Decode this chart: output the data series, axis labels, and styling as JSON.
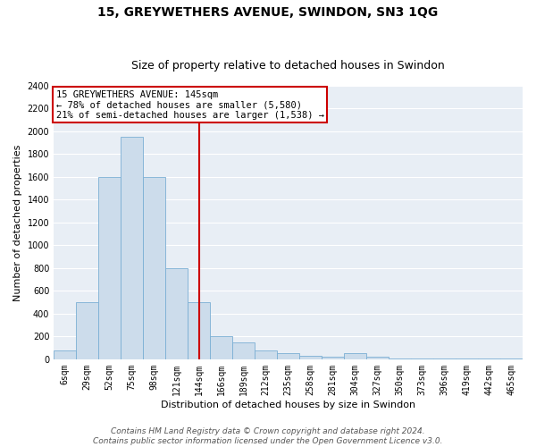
{
  "title": "15, GREYWETHERS AVENUE, SWINDON, SN3 1QG",
  "subtitle": "Size of property relative to detached houses in Swindon",
  "xlabel": "Distribution of detached houses by size in Swindon",
  "ylabel": "Number of detached properties",
  "bin_labels": [
    "6sqm",
    "29sqm",
    "52sqm",
    "75sqm",
    "98sqm",
    "121sqm",
    "144sqm",
    "166sqm",
    "189sqm",
    "212sqm",
    "235sqm",
    "258sqm",
    "281sqm",
    "304sqm",
    "327sqm",
    "350sqm",
    "373sqm",
    "396sqm",
    "419sqm",
    "442sqm",
    "465sqm"
  ],
  "bar_heights": [
    75,
    500,
    1600,
    1950,
    1600,
    800,
    500,
    200,
    150,
    75,
    50,
    30,
    25,
    50,
    20,
    10,
    5,
    5,
    5,
    5,
    5
  ],
  "bar_color": "#ccdceb",
  "bar_edge_color": "#7bafd4",
  "vline_color": "#cc0000",
  "annotation_text": "15 GREYWETHERS AVENUE: 145sqm\n← 78% of detached houses are smaller (5,580)\n21% of semi-detached houses are larger (1,538) →",
  "annotation_box_color": "#cc0000",
  "ylim": [
    0,
    2400
  ],
  "yticks": [
    0,
    200,
    400,
    600,
    800,
    1000,
    1200,
    1400,
    1600,
    1800,
    2000,
    2200,
    2400
  ],
  "footer_line1": "Contains HM Land Registry data © Crown copyright and database right 2024.",
  "footer_line2": "Contains public sector information licensed under the Open Government Licence v3.0.",
  "background_color": "#ffffff",
  "plot_bg_color": "#e8eef5",
  "grid_color": "#ffffff",
  "title_fontsize": 10,
  "subtitle_fontsize": 9,
  "axis_label_fontsize": 8,
  "tick_fontsize": 7,
  "footer_fontsize": 6.5,
  "vline_index": 6.5
}
